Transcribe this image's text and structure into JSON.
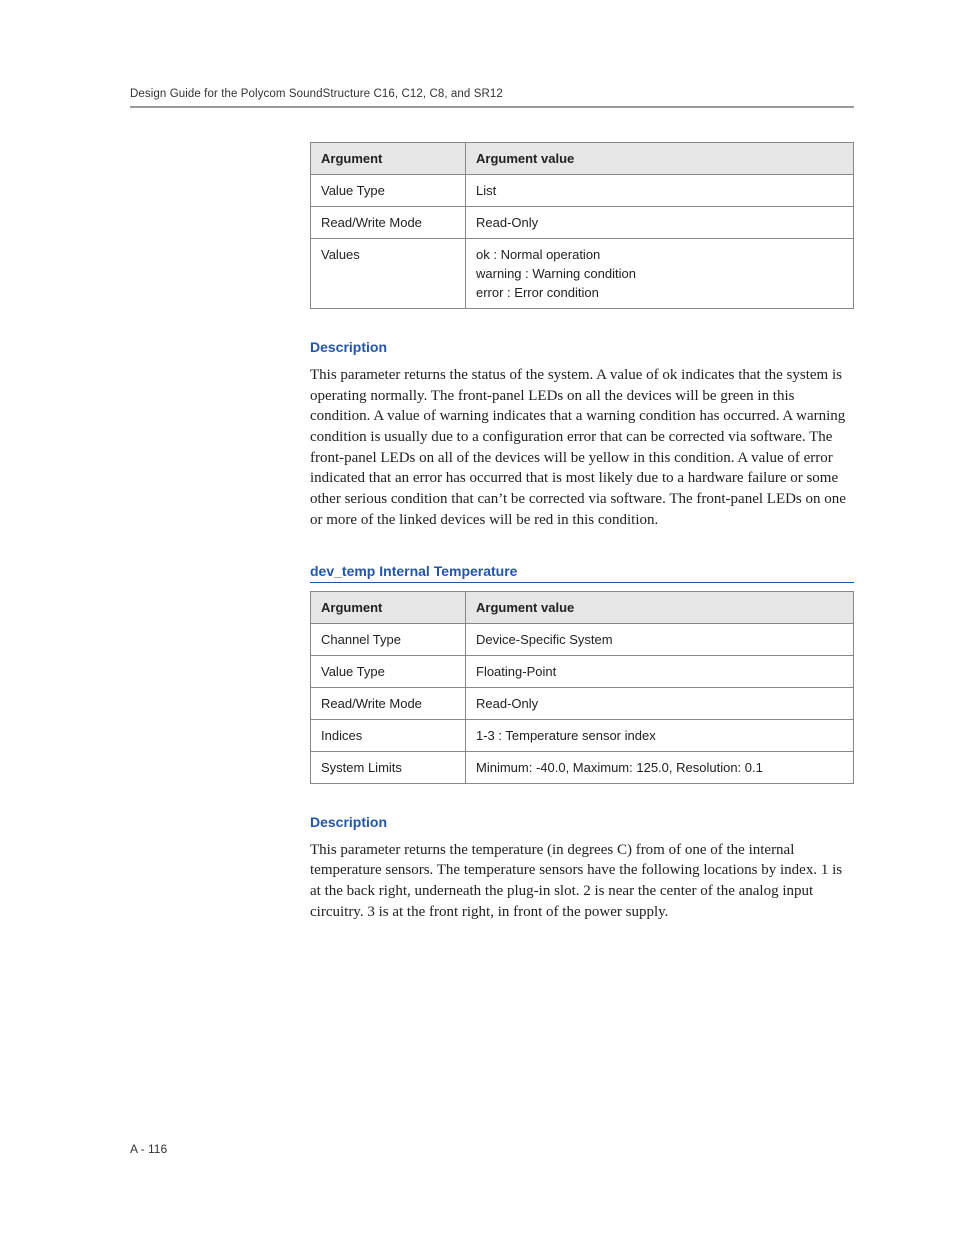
{
  "header": {
    "running_title": "Design Guide for the Polycom SoundStructure C16, C12, C8, and SR12"
  },
  "table1": {
    "col1_header": "Argument",
    "col2_header": "Argument value",
    "rows": [
      {
        "arg": "Value Type",
        "val": "List"
      },
      {
        "arg": "Read/Write Mode",
        "val": "Read-Only"
      }
    ],
    "values_row": {
      "arg": "Values",
      "lines": [
        "ok : Normal operation",
        "warning : Warning condition",
        "error : Error condition"
      ]
    }
  },
  "section1": {
    "heading": "Description",
    "body": "This parameter returns the status of the system. A value of ok indicates that the system is operating normally. The front-panel LEDs on all the devices will be green in this condition. A value of warning indicates that a warning condition has occurred. A warning condition is usually due to a configuration error that can be corrected via software. The front-panel LEDs on all of the devices will be yellow in this condition. A value of error indicated that an error has occurred that is most likely due to a hardware failure or some other serious condition that can’t be corrected via software. The front-panel LEDs on one or more of the linked devices will be red in this condition."
  },
  "param2": {
    "heading": "dev_temp Internal Temperature"
  },
  "table2": {
    "col1_header": "Argument",
    "col2_header": "Argument value",
    "rows": [
      {
        "arg": "Channel Type",
        "val": "Device-Specific System"
      },
      {
        "arg": "Value Type",
        "val": "Floating-Point"
      },
      {
        "arg": "Read/Write Mode",
        "val": "Read-Only"
      },
      {
        "arg": "Indices",
        "val": "1-3 : Temperature sensor index"
      },
      {
        "arg": "System Limits",
        "val": "Minimum: -40.0, Maximum: 125.0, Resolution: 0.1"
      }
    ]
  },
  "section2": {
    "heading": "Description",
    "body": "This parameter returns the temperature (in degrees C) from of one of the internal temperature sensors. The temperature sensors have the following locations by index. 1 is at the back right, underneath the plug-in slot. 2 is near the center of the analog input circuitry. 3 is at the front right, in front of the power supply."
  },
  "footer": {
    "page_label": "A - 116"
  }
}
